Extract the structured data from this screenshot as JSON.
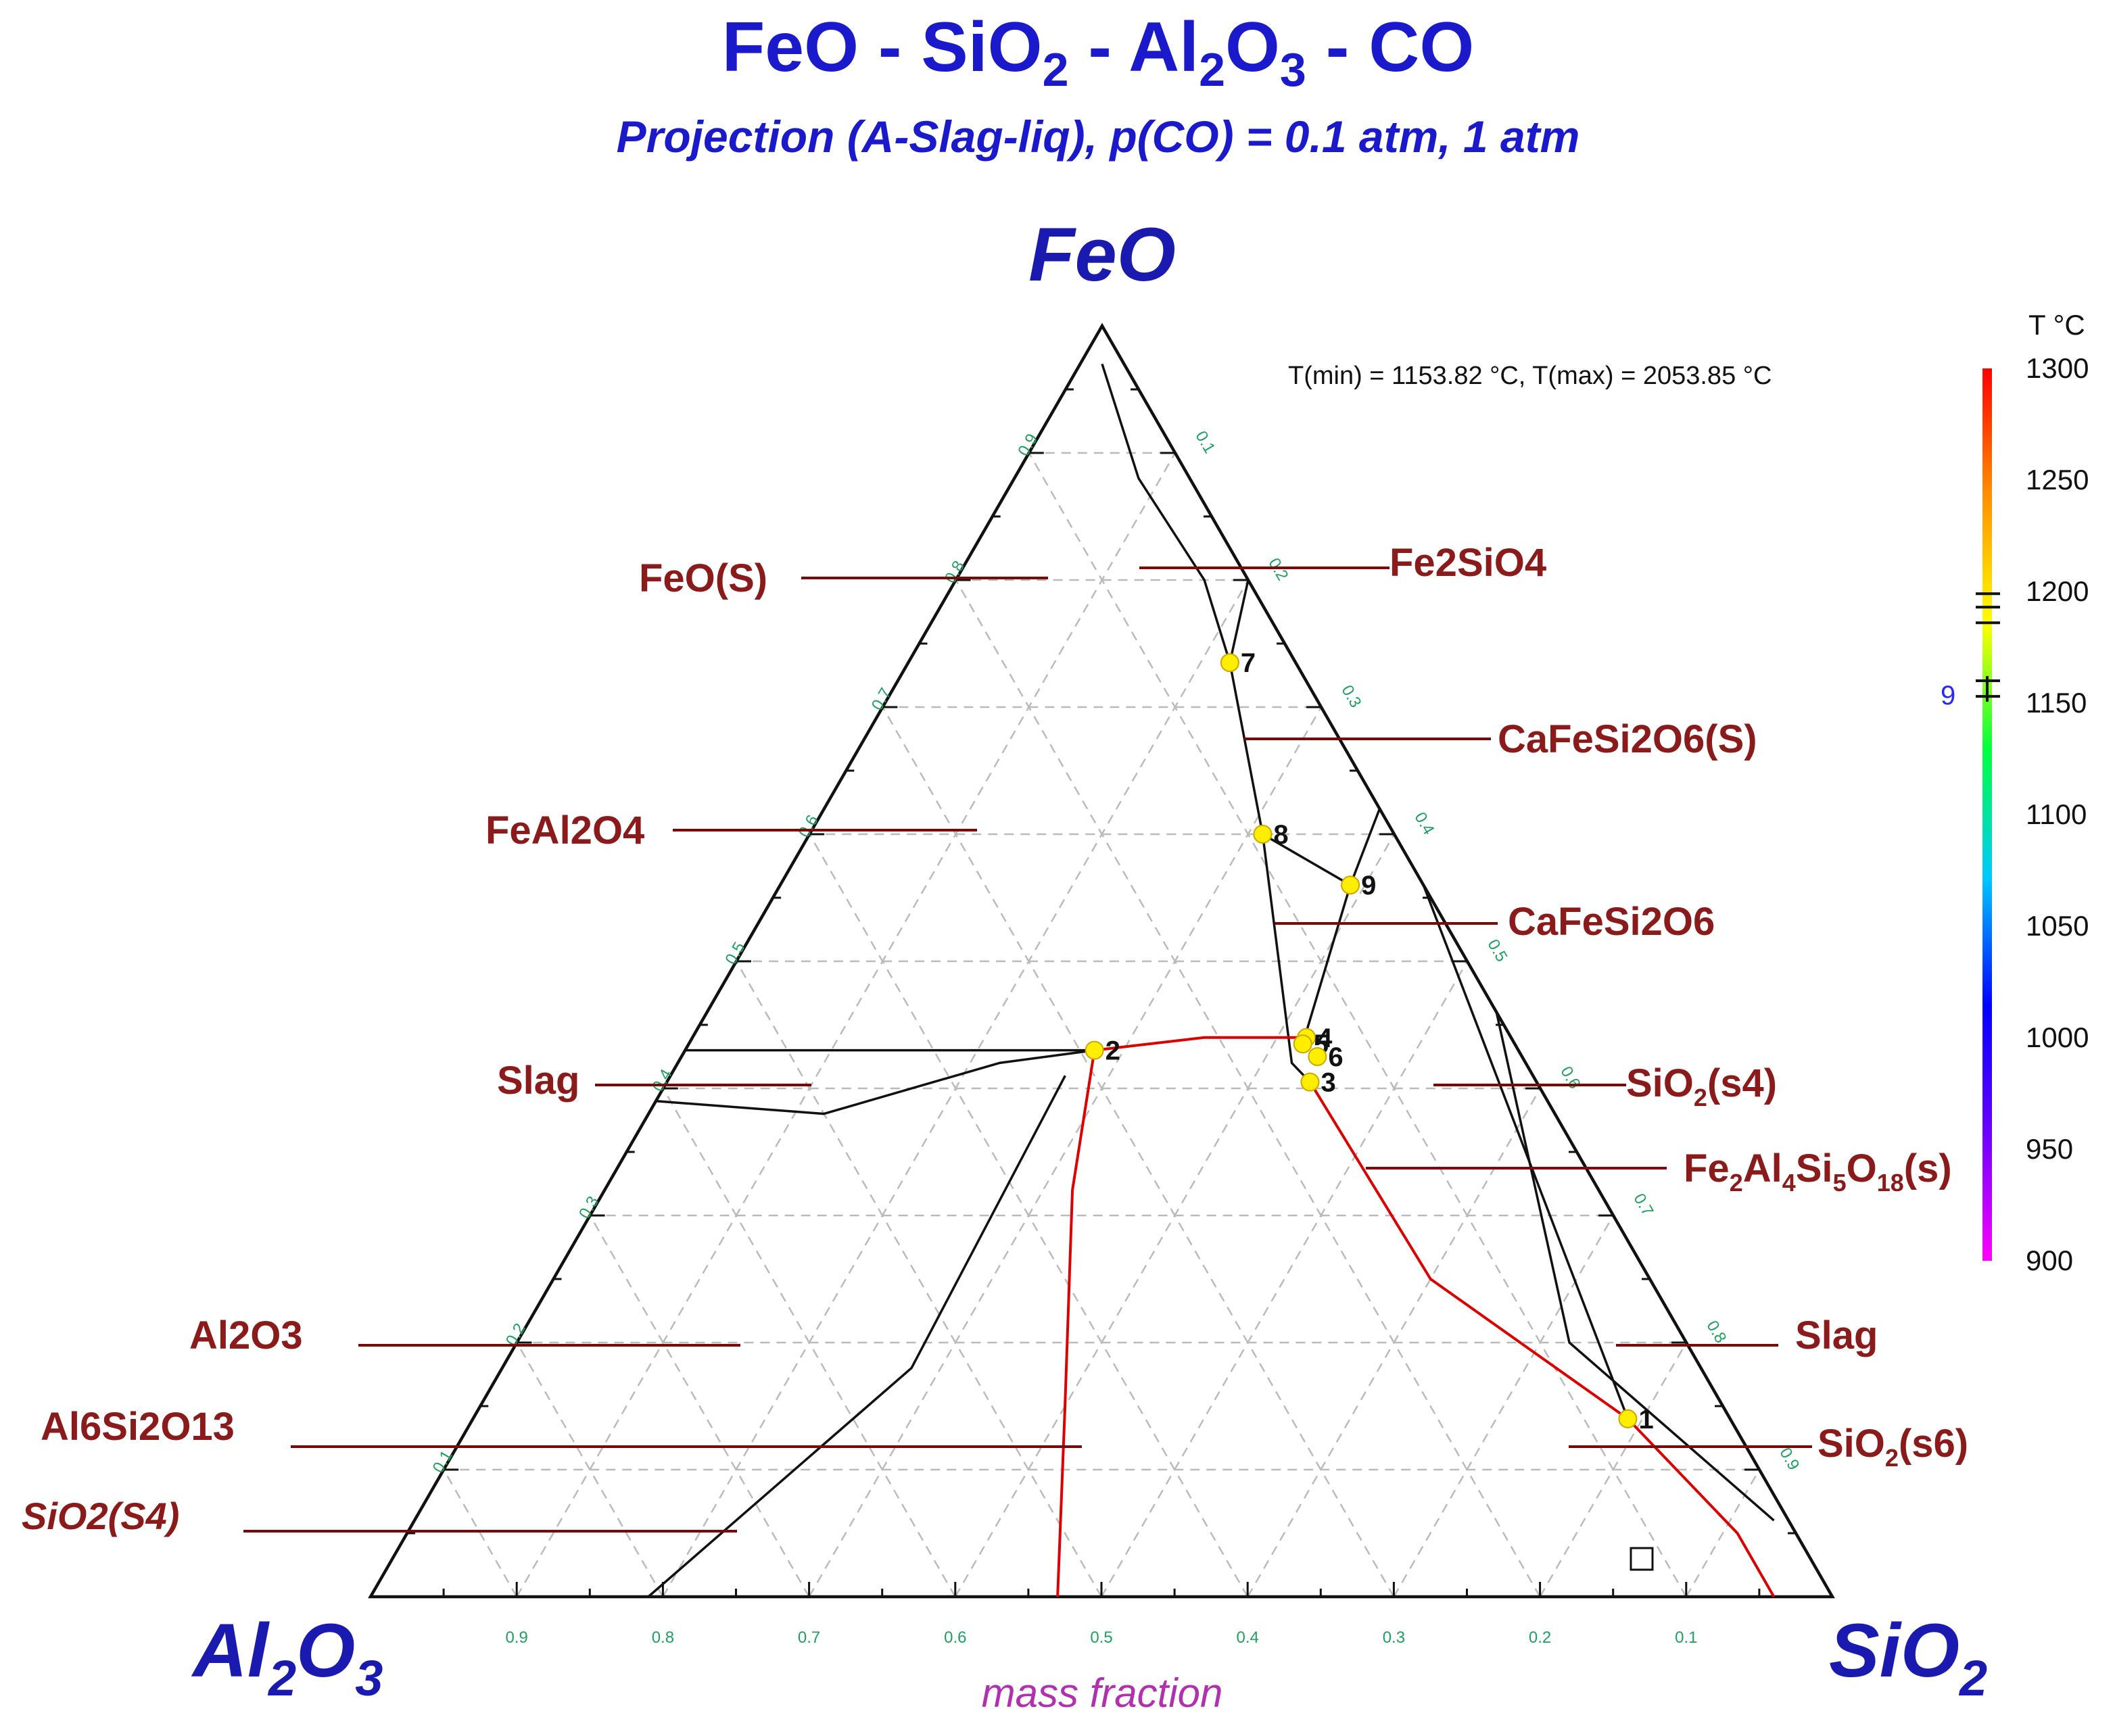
{
  "header": {
    "title_parts": [
      "FeO - SiO",
      "2",
      " - Al",
      "2",
      "O",
      "3",
      " - CO"
    ],
    "subtitle": "Projection (A-Slag-liq), p(CO) = 0.1 atm, 1 atm"
  },
  "vertices": {
    "top": "FeO",
    "left": [
      "Al",
      "2",
      "O",
      "3"
    ],
    "right": [
      "SiO",
      "2"
    ]
  },
  "axis_label": "mass fraction",
  "info_text": "T(min) = 1153.82 °C, T(max) = 2053.85 °C",
  "colorbar": {
    "unit": "T °C",
    "ticks": [
      "1300",
      "1250",
      "1200",
      "1150",
      "1100",
      "1050",
      "1000",
      "950",
      "900"
    ],
    "tick_values": [
      1300,
      1250,
      1200,
      1150,
      1100,
      1050,
      1000,
      950,
      900
    ],
    "range": [
      900,
      1300
    ],
    "stops": [
      "#ff00ff",
      "#6a00ff",
      "#0000ff",
      "#00c8ff",
      "#00ff40",
      "#ffff00",
      "#ff9000",
      "#ff0000"
    ],
    "marker_label": "9",
    "marker_values": [
      1199,
      1193,
      1186,
      1160,
      1153
    ]
  },
  "phase_labels": {
    "feo_s": "FeO(S)",
    "fe2sio4": "Fe2SiO4",
    "cafesi2o6_s": "CaFeSi2O6(S)",
    "feal2o4": "FeAl2O4",
    "cafesi2o6": "CaFeSi2O6",
    "slag_left": "Slag",
    "sio2_s4": [
      "SiO",
      "2",
      "(s4)"
    ],
    "fe2al4si5o18": [
      "Fe",
      "2",
      "Al",
      "4",
      "Si",
      "5",
      "O",
      "18",
      "(s)"
    ],
    "al2o3": "Al2O3",
    "slag_right": "Slag",
    "al6si2o13": "Al6Si2O13",
    "sio2_s6": [
      "SiO",
      "2",
      "(s6)"
    ],
    "sio2_S4_italic": "SiO2(S4)"
  },
  "chart_data": {
    "type": "ternary",
    "title": "FeO - SiO2 - Al2O3 - CO",
    "subtitle": "Projection (A-Slag-liq), p(CO) = 0.1 atm, 1 atm",
    "components": {
      "top": "FeO",
      "left": "Al2O3",
      "right": "SiO2"
    },
    "axis_label": "mass fraction",
    "bottom_ticks": [
      "0.9",
      "0.8",
      "0.7",
      "0.6",
      "0.5",
      "0.4",
      "0.3",
      "0.2",
      "0.1"
    ],
    "left_ticks": [
      "0.1",
      "0.2",
      "0.3",
      "0.4",
      "0.5",
      "0.6",
      "0.7",
      "0.8",
      "0.9"
    ],
    "right_ticks": [
      "0.1",
      "0.2",
      "0.3",
      "0.4",
      "0.5",
      "0.6",
      "0.7",
      "0.8",
      "0.9"
    ],
    "grid": true,
    "temperature_range_c": [
      1153.82,
      2053.85
    ],
    "invariant_points": [
      {
        "label": "1",
        "feo": 0.14,
        "sio2": 0.79
      },
      {
        "label": "2",
        "feo": 0.43,
        "sio2": 0.28
      },
      {
        "label": "3",
        "feo": 0.405,
        "sio2": 0.44
      },
      {
        "label": "4",
        "feo": 0.44,
        "sio2": 0.42
      },
      {
        "label": "5",
        "feo": 0.435,
        "sio2": 0.42
      },
      {
        "label": "6",
        "feo": 0.425,
        "sio2": 0.435
      },
      {
        "label": "7",
        "feo": 0.735,
        "sio2": 0.22
      },
      {
        "label": "8",
        "feo": 0.6,
        "sio2": 0.31
      },
      {
        "label": "9",
        "feo": 0.56,
        "sio2": 0.39
      }
    ],
    "red_boundaries": [
      {
        "name": "2-4",
        "points": [
          [
            0.43,
            0.28
          ],
          [
            0.44,
            0.35
          ],
          [
            0.44,
            0.42
          ]
        ]
      },
      {
        "name": "2-base",
        "points": [
          [
            0.43,
            0.28
          ],
          [
            0.32,
            0.32
          ],
          [
            0.15,
            0.4
          ],
          [
            0.0,
            0.47
          ]
        ]
      },
      {
        "name": "3-1-base",
        "points": [
          [
            0.405,
            0.44
          ],
          [
            0.25,
            0.6
          ],
          [
            0.14,
            0.79
          ],
          [
            0.05,
            0.91
          ],
          [
            0.0,
            0.96
          ]
        ]
      }
    ],
    "black_boundaries": [
      {
        "name": "FeO-corner-7",
        "points": [
          [
            0.97,
            0.015
          ],
          [
            0.88,
            0.085
          ],
          [
            0.8,
            0.17
          ],
          [
            0.735,
            0.22
          ]
        ]
      },
      {
        "name": "edge-7",
        "points": [
          [
            0.8,
            0.2
          ],
          [
            0.735,
            0.22
          ]
        ]
      },
      {
        "name": "7-8-3",
        "points": [
          [
            0.735,
            0.22
          ],
          [
            0.6,
            0.31
          ],
          [
            0.42,
            0.42
          ],
          [
            0.405,
            0.44
          ]
        ]
      },
      {
        "name": "8-9",
        "points": [
          [
            0.6,
            0.31
          ],
          [
            0.56,
            0.39
          ]
        ]
      },
      {
        "name": "edge-9",
        "points": [
          [
            0.62,
            0.38
          ],
          [
            0.56,
            0.39
          ]
        ]
      },
      {
        "name": "9-5",
        "points": [
          [
            0.56,
            0.39
          ],
          [
            0.435,
            0.42
          ]
        ]
      },
      {
        "name": "edge-1",
        "points": [
          [
            0.56,
            0.44
          ],
          [
            0.14,
            0.79
          ]
        ]
      },
      {
        "name": "edge-tail",
        "points": [
          [
            0.46,
            0.54
          ],
          [
            0.2,
            0.72
          ],
          [
            0.06,
            0.93
          ]
        ]
      },
      {
        "name": "Slag-left-upper",
        "points": [
          [
            0.43,
            0.0
          ],
          [
            0.43,
            0.28
          ]
        ]
      },
      {
        "name": "Slag-left-lower",
        "points": [
          [
            0.39,
            0.0
          ],
          [
            0.38,
            0.12
          ],
          [
            0.42,
            0.22
          ],
          [
            0.43,
            0.28
          ]
        ]
      },
      {
        "name": "lower-left",
        "points": [
          [
            0.41,
            0.27
          ],
          [
            0.18,
            0.28
          ],
          [
            0.0,
            0.19
          ]
        ]
      }
    ]
  }
}
